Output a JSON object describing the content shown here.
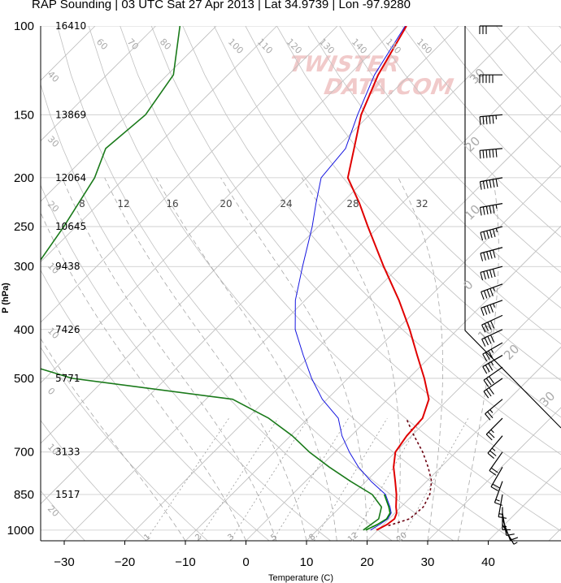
{
  "title": "RAP Sounding | 03 UTC Sat 27 Apr 2013 | Lat 34.9739 | Lon -97.9280",
  "logo_text_1": "TWISTER",
  "logo_text_2": "DATA.COM",
  "colors": {
    "temperature": "#e00000",
    "dewpoint_1": "#1515e0",
    "dewpoint_2": "#008000",
    "theta_e": "#1a7a1a",
    "parcel": "#6b0010",
    "grid": "#c8c8c8",
    "skew": "#bdbdbd"
  },
  "chart_data": {
    "type": "line",
    "diagram": "skew-T log-P",
    "xlabel": "Temperature (C)",
    "ylabel": "P (hPa)",
    "xlim": [
      -34,
      49
    ],
    "ylim": [
      1050,
      100
    ],
    "x_ticks": [
      "−30",
      "−20",
      "−10",
      "0",
      "10",
      "20",
      "30",
      "40"
    ],
    "x_tick_values": [
      -30,
      -20,
      -10,
      0,
      10,
      20,
      30,
      40
    ],
    "y_ticks": [
      "100",
      "150",
      "200",
      "250",
      "300",
      "400",
      "500",
      "700",
      "850",
      "1000"
    ],
    "y_tick_values": [
      100,
      150,
      200,
      250,
      300,
      400,
      500,
      700,
      850,
      1000
    ],
    "heights_m": [
      {
        "p": 100,
        "label": "16410"
      },
      {
        "p": 150,
        "label": "13869"
      },
      {
        "p": 200,
        "label": "12064"
      },
      {
        "p": 250,
        "label": "10645"
      },
      {
        "p": 300,
        "label": "9438"
      },
      {
        "p": 400,
        "label": "7426"
      },
      {
        "p": 500,
        "label": "5771"
      },
      {
        "p": 700,
        "label": "3133"
      },
      {
        "p": 850,
        "label": "1517"
      }
    ],
    "skew_labels": [
      {
        "label": "60",
        "t": 60
      },
      {
        "label": "70",
        "t": 70
      },
      {
        "label": "80",
        "t": 80
      },
      {
        "label": "100",
        "t": 100
      },
      {
        "label": "110",
        "t": 110
      },
      {
        "label": "120",
        "t": 120
      },
      {
        "label": "130",
        "t": 130
      },
      {
        "label": "140",
        "t": 140
      },
      {
        "label": "150",
        "t": 150
      },
      {
        "label": "160",
        "t": 160
      }
    ],
    "right_labels": [
      "30",
      "20",
      "10",
      "0",
      "10",
      "20",
      "30"
    ],
    "left_labels": [
      "40",
      "30",
      "20",
      "10",
      "10",
      "0",
      "10",
      "20",
      "30"
    ],
    "mixing_ratio_labels": [
      "8",
      "12",
      "16",
      "20",
      "24",
      "28",
      "32"
    ],
    "bottom_labels": [
      "1",
      "2",
      "3",
      "5",
      "8",
      "12",
      "20"
    ],
    "series": [
      {
        "name": "Temperature",
        "points": [
          [
            1000,
            19.8
          ],
          [
            975,
            20.6
          ],
          [
            950,
            20.9
          ],
          [
            925,
            20.3
          ],
          [
            900,
            19.2
          ],
          [
            850,
            17.2
          ],
          [
            800,
            14.8
          ],
          [
            750,
            12.2
          ],
          [
            700,
            10.0
          ],
          [
            650,
            9.2
          ],
          [
            600,
            8.9
          ],
          [
            550,
            6.8
          ],
          [
            500,
            2.6
          ],
          [
            450,
            -2.4
          ],
          [
            400,
            -7.9
          ],
          [
            350,
            -14.5
          ],
          [
            300,
            -22.6
          ],
          [
            250,
            -31.8
          ],
          [
            225,
            -37.0
          ],
          [
            200,
            -43.2
          ],
          [
            175,
            -47.0
          ],
          [
            150,
            -51.4
          ],
          [
            125,
            -55.2
          ],
          [
            100,
            -58.6
          ]
        ]
      },
      {
        "name": "Dewpoint",
        "points": [
          [
            1000,
            18.8
          ],
          [
            975,
            19.4
          ],
          [
            950,
            19.8
          ],
          [
            925,
            19.4
          ],
          [
            900,
            18.2
          ],
          [
            850,
            15.4
          ],
          [
            800,
            10.8
          ],
          [
            750,
            6.4
          ],
          [
            700,
            2.4
          ],
          [
            650,
            -1.5
          ],
          [
            600,
            -5.0
          ],
          [
            550,
            -10.8
          ],
          [
            500,
            -16.0
          ],
          [
            450,
            -21.2
          ],
          [
            400,
            -26.8
          ],
          [
            350,
            -31.6
          ],
          [
            300,
            -36.0
          ],
          [
            250,
            -41.0
          ],
          [
            225,
            -44.2
          ],
          [
            200,
            -47.6
          ],
          [
            175,
            -48.4
          ],
          [
            150,
            -52.0
          ],
          [
            125,
            -55.8
          ],
          [
            100,
            -58.8
          ]
        ]
      },
      {
        "name": "Dewpoint (surface layer)",
        "points": [
          [
            1000,
            18.0
          ],
          [
            975,
            19.0
          ],
          [
            950,
            19.6
          ],
          [
            925,
            19.2
          ],
          [
            900,
            18.0
          ],
          [
            850,
            15.2
          ]
        ]
      },
      {
        "name": "Theta-E",
        "points": [
          [
            1000,
            17.6
          ],
          [
            950,
            18.3
          ],
          [
            900,
            16.8
          ],
          [
            850,
            13.2
          ],
          [
            800,
            7.4
          ],
          [
            750,
            1.6
          ],
          [
            700,
            -4.2
          ],
          [
            650,
            -9.7
          ],
          [
            600,
            -16.5
          ],
          [
            550,
            -25.6
          ],
          [
            500,
            -55.5
          ],
          [
            450,
            -72.0
          ],
          [
            400,
            -74.0
          ],
          [
            350,
            -76.0
          ],
          [
            300,
            -80.0
          ],
          [
            250,
            -82.0
          ],
          [
            200,
            -85.0
          ],
          [
            175,
            -88.0
          ],
          [
            150,
            -87.0
          ],
          [
            125,
            -89.0
          ],
          [
            100,
            -96.0
          ]
        ]
      },
      {
        "name": "Parcel",
        "points": [
          [
            980,
            21.0
          ],
          [
            950,
            23.4
          ],
          [
            900,
            23.7
          ],
          [
            850,
            22.7
          ],
          [
            800,
            20.8
          ],
          [
            750,
            17.9
          ],
          [
            700,
            14.5
          ],
          [
            650,
            10.4
          ],
          [
            600,
            6.2
          ]
        ]
      }
    ]
  },
  "wind_barbs": [
    {
      "p": 100,
      "dir": 270,
      "spd": 30
    },
    {
      "p": 125,
      "dir": 270,
      "spd": 50
    },
    {
      "p": 150,
      "dir": 265,
      "spd": 55
    },
    {
      "p": 175,
      "dir": 265,
      "spd": 60
    },
    {
      "p": 200,
      "dir": 260,
      "spd": 60
    },
    {
      "p": 225,
      "dir": 260,
      "spd": 55
    },
    {
      "p": 250,
      "dir": 255,
      "spd": 55
    },
    {
      "p": 275,
      "dir": 255,
      "spd": 50
    },
    {
      "p": 300,
      "dir": 255,
      "spd": 50
    },
    {
      "p": 325,
      "dir": 250,
      "spd": 45
    },
    {
      "p": 350,
      "dir": 250,
      "spd": 45
    },
    {
      "p": 375,
      "dir": 245,
      "spd": 40
    },
    {
      "p": 400,
      "dir": 245,
      "spd": 40
    },
    {
      "p": 425,
      "dir": 240,
      "spd": 35
    },
    {
      "p": 450,
      "dir": 240,
      "spd": 35
    },
    {
      "p": 475,
      "dir": 235,
      "spd": 30
    },
    {
      "p": 500,
      "dir": 235,
      "spd": 30
    },
    {
      "p": 550,
      "dir": 230,
      "spd": 25
    },
    {
      "p": 600,
      "dir": 225,
      "spd": 25
    },
    {
      "p": 650,
      "dir": 220,
      "spd": 25
    },
    {
      "p": 700,
      "dir": 215,
      "spd": 20
    },
    {
      "p": 750,
      "dir": 210,
      "spd": 20
    },
    {
      "p": 800,
      "dir": 200,
      "spd": 15
    },
    {
      "p": 850,
      "dir": 190,
      "spd": 15
    },
    {
      "p": 900,
      "dir": 180,
      "spd": 15
    },
    {
      "p": 925,
      "dir": 170,
      "spd": 10
    },
    {
      "p": 950,
      "dir": 160,
      "spd": 10
    },
    {
      "p": 975,
      "dir": 150,
      "spd": 5
    }
  ]
}
